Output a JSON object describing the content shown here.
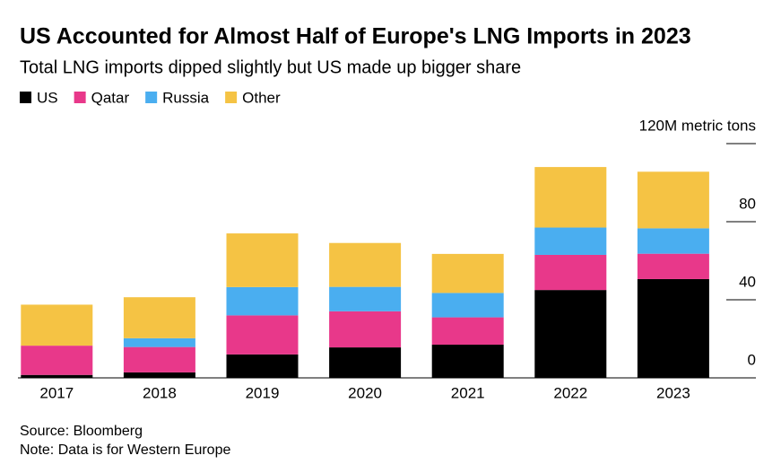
{
  "chart_data": {
    "type": "stacked_bar",
    "title": "US Accounted for Almost Half of Europe's LNG Imports in 2023",
    "subtitle": "Total LNG imports dipped slightly but US made up bigger share",
    "categories": [
      "2017",
      "2018",
      "2019",
      "2020",
      "2021",
      "2022",
      "2023"
    ],
    "series": [
      {
        "name": "US",
        "color": "#000000",
        "values": [
          1.5,
          2.8,
          12,
          15.6,
          17,
          45,
          50.6
        ]
      },
      {
        "name": "Qatar",
        "color": "#e8388a",
        "values": [
          15,
          13,
          20,
          18.5,
          14,
          18,
          13
        ]
      },
      {
        "name": "Russia",
        "color": "#4aaef0",
        "values": [
          0,
          4.5,
          14.5,
          12.5,
          12.5,
          14,
          13
        ]
      },
      {
        "name": "Other",
        "color": "#f5c344",
        "values": [
          21,
          21,
          27.5,
          22.5,
          20,
          31,
          29
        ]
      }
    ],
    "ylim": [
      0,
      120
    ],
    "yticks": [
      0,
      40,
      80,
      {
        "value": 120,
        "label": "120M metric tons"
      }
    ],
    "source": "Source: Bloomberg",
    "note": "Note: Data is for Western Europe"
  }
}
